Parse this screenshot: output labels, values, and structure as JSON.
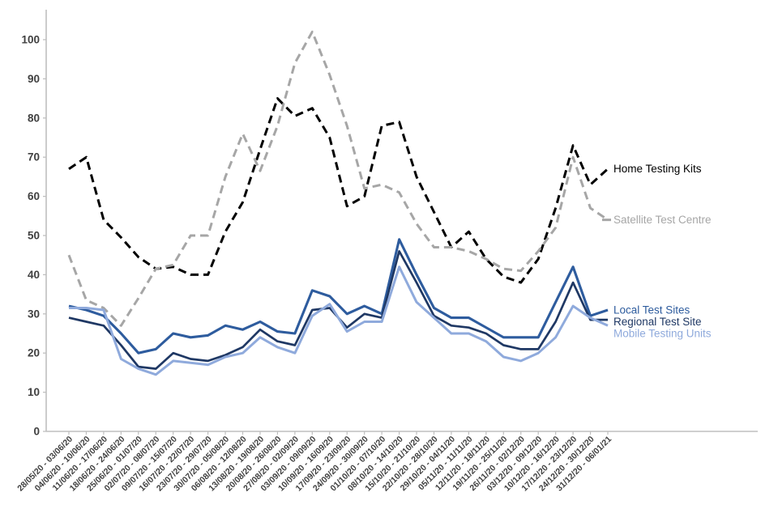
{
  "page": {
    "background": "#ffffff"
  },
  "chart_data": {
    "type": "line",
    "title": "",
    "xlabel": "",
    "ylabel": "",
    "ylim": [
      0,
      100
    ],
    "ytick_step": 10,
    "grid": false,
    "legend_position": "right-of-line-end",
    "axis_color": "#BFBFBF",
    "tick_label_color": "#404040",
    "y_tick_labels": [
      "0",
      "10",
      "20",
      "30",
      "40",
      "50",
      "60",
      "70",
      "80",
      "90",
      "100"
    ],
    "categories": [
      "28/05/20 - 03/06/20",
      "04/06/20 - 10/06/20",
      "11/06/20 - 17/06/20",
      "18/06/20 - 24/06/20",
      "25/06/20 - 01/07/20",
      "02/07/20 - 08/07/20",
      "09/07/20 - 15/07/20",
      "16/07/20 - 22/07/20",
      "23/07/20 - 29/07/20",
      "30/07/20 - 05/08/20",
      "06/08/20 - 12/08/20",
      "13/08/20 - 19/08/20",
      "20/08/20 - 26/08/20",
      "27/08/20 - 02/09/20",
      "03/09/20 - 09/09/20",
      "10/09/20 - 16/09/20",
      "17/09/20 - 23/09/20",
      "24/09/20 - 30/09/20",
      "01/10/20 - 07/10/20",
      "08/10/20 - 14/10/20",
      "15/10/20 - 21/10/20",
      "22/10/20 - 28/10/20",
      "29/10/20 - 04/11/20",
      "05/11/20 - 11/11/20",
      "12/11/20 - 18/11/20",
      "19/11/20 - 25/11/20",
      "26/11/20 - 02/12/20",
      "03/12/20 - 09/12/20",
      "10/12/20 - 16/12/20",
      "17/12/20 - 23/12/20",
      "24/12/20 - 30/12/20",
      "31/12/20 - 06/01/21"
    ],
    "series": [
      {
        "name": "Home Testing Kits",
        "color": "#000000",
        "dashed": true,
        "values": [
          67,
          70,
          54,
          49.5,
          44.5,
          41.5,
          42,
          40,
          40,
          51,
          58.5,
          72,
          85,
          80.5,
          82.5,
          75,
          57.5,
          60,
          78,
          79,
          65,
          56,
          47,
          51,
          44,
          39.5,
          38,
          44,
          57,
          73,
          63,
          67
        ]
      },
      {
        "name": "Satellite Test Centre",
        "color": "#A6A6A6",
        "dashed": true,
        "values": [
          45,
          33.5,
          31.5,
          27,
          34,
          41.5,
          42.5,
          50,
          50,
          65,
          76,
          66.5,
          78,
          94,
          102,
          91,
          78,
          62,
          63,
          61,
          53,
          47,
          47,
          46,
          44,
          41.5,
          41,
          46,
          52,
          70,
          57,
          54
        ]
      },
      {
        "name": "Local Test Sites",
        "color": "#2E5C9E",
        "dashed": false,
        "values": [
          32,
          31,
          29.5,
          25,
          20,
          21,
          25,
          24,
          24.5,
          27,
          26,
          28,
          25.5,
          25,
          36,
          34.5,
          30,
          32,
          30,
          49,
          40,
          31.5,
          29,
          29,
          26.5,
          24,
          24,
          24,
          33,
          42,
          29.5,
          31
        ]
      },
      {
        "name": "Regional Test Site",
        "color": "#1F3864",
        "dashed": false,
        "values": [
          29,
          28,
          27,
          22,
          16.5,
          16,
          20,
          18.5,
          18,
          19.5,
          21.5,
          26,
          23,
          22,
          31,
          31.5,
          26.5,
          30,
          29,
          46,
          38,
          29.5,
          27,
          26.5,
          25,
          22,
          21,
          21,
          28,
          38,
          28.5,
          28.5
        ]
      },
      {
        "name": "Mobile Testing Units",
        "color": "#8FAADC",
        "dashed": false,
        "values": [
          31.5,
          31.5,
          31,
          18.5,
          16,
          14.5,
          18,
          17.5,
          17,
          19,
          20,
          24,
          21.5,
          20,
          29.5,
          32.5,
          25.5,
          28,
          28,
          42,
          33,
          29,
          25,
          25,
          23,
          19,
          18,
          20,
          24,
          32,
          29,
          27
        ]
      }
    ]
  }
}
